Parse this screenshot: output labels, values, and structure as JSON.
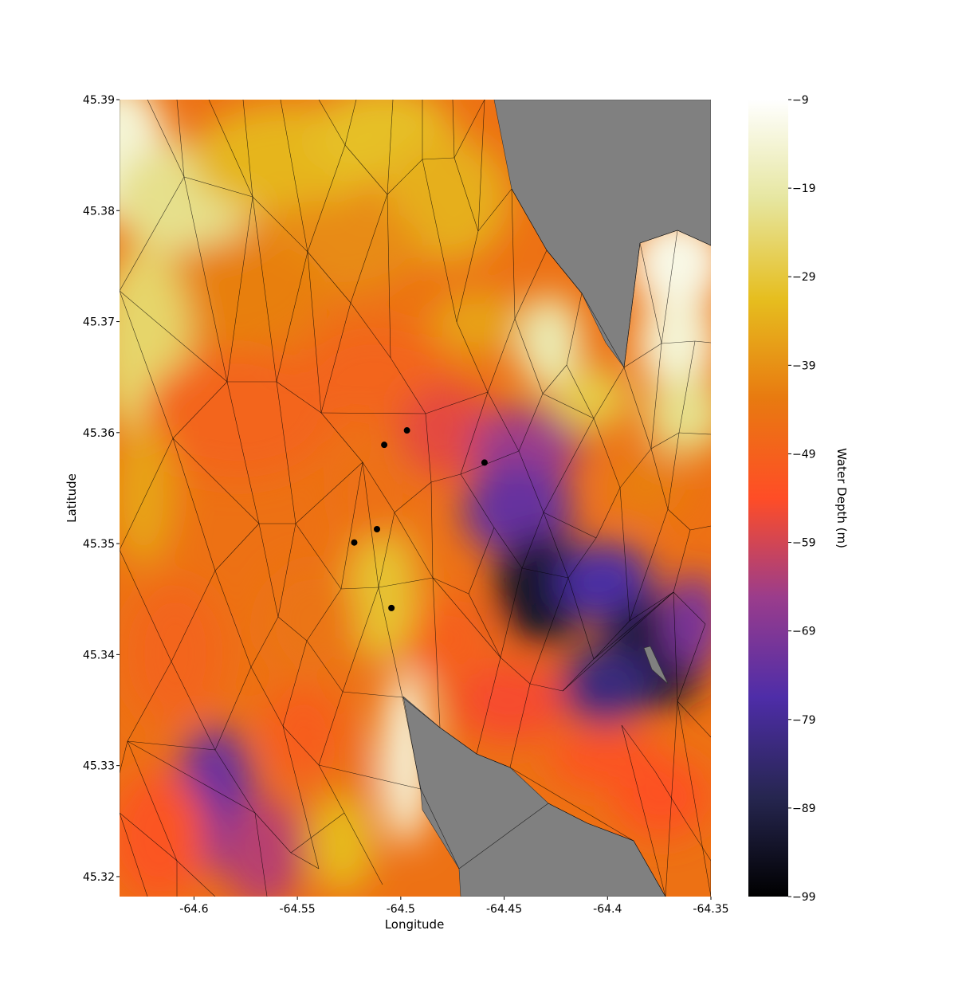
{
  "chart_data": {
    "type": "heatmap",
    "title": "",
    "xlabel": "Longitude",
    "ylabel": "Latitude",
    "xlim": [
      -64.636,
      -64.35
    ],
    "ylim": [
      45.3182,
      45.39
    ],
    "x_ticks": [
      -64.6,
      -64.55,
      -64.5,
      -64.45,
      -64.4,
      -64.35
    ],
    "x_tick_labels": [
      "-64.6",
      "-64.55",
      "-64.5",
      "-64.45",
      "-64.4",
      "-64.35"
    ],
    "y_ticks": [
      45.32,
      45.33,
      45.34,
      45.35,
      45.36,
      45.37,
      45.38,
      45.39
    ],
    "y_tick_labels": [
      "45.32",
      "45.33",
      "45.34",
      "45.35",
      "45.36",
      "45.37",
      "45.38",
      "45.39"
    ],
    "colorbar": {
      "label": "Water Depth (m)",
      "range": [
        -99,
        -9
      ],
      "colormap": "CMRmap",
      "ticks": [
        -9,
        -19,
        -29,
        -39,
        -49,
        -59,
        -69,
        -79,
        -89,
        -99
      ],
      "tick_labels": [
        "−9",
        "−19",
        "−29",
        "−39",
        "−49",
        "−59",
        "−69",
        "−79",
        "−89",
        "−99"
      ]
    },
    "land_color": "#808080",
    "points": [
      {
        "lon": -64.508,
        "lat": 45.3589
      },
      {
        "lon": -64.497,
        "lat": 45.3602
      },
      {
        "lon": -64.4595,
        "lat": 45.3573
      },
      {
        "lon": -64.5115,
        "lat": 45.3513
      },
      {
        "lon": -64.5225,
        "lat": 45.3501
      },
      {
        "lon": -64.5045,
        "lat": 45.3442
      }
    ]
  }
}
